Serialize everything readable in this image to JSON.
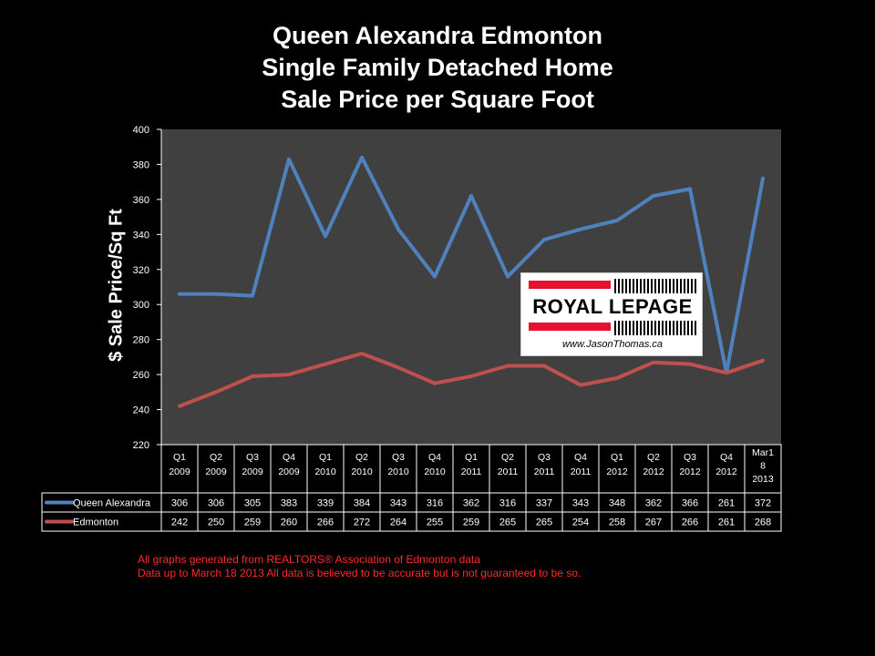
{
  "chart_data": {
    "type": "line",
    "title": [
      "Queen Alexandra Edmonton",
      "Single Family Detached Home",
      "Sale Price per Square Foot"
    ],
    "xlabel": "",
    "ylabel": "$ Sale Price/Sq Ft",
    "ylim": [
      220,
      400
    ],
    "yticks": [
      220,
      240,
      260,
      280,
      300,
      320,
      340,
      360,
      380,
      400
    ],
    "grid": false,
    "legend": "data-table",
    "categories": [
      [
        "Q1",
        "2009"
      ],
      [
        "Q2",
        "2009"
      ],
      [
        "Q3",
        "2009"
      ],
      [
        "Q4",
        "2009"
      ],
      [
        "Q1",
        "2010"
      ],
      [
        "Q2",
        "2010"
      ],
      [
        "Q3",
        "2010"
      ],
      [
        "Q4",
        "2010"
      ],
      [
        "Q1",
        "2011"
      ],
      [
        "Q2",
        "2011"
      ],
      [
        "Q3",
        "2011"
      ],
      [
        "Q4",
        "2011"
      ],
      [
        "Q1",
        "2012"
      ],
      [
        "Q2",
        "2012"
      ],
      [
        "Q3",
        "2012"
      ],
      [
        "Q4",
        "2012"
      ],
      [
        "Mar1",
        "8",
        "2013"
      ]
    ],
    "series": [
      {
        "name": "Queen Alexandra",
        "color": "#4f81bd",
        "values": [
          306,
          306,
          305,
          383,
          339,
          384,
          343,
          316,
          362,
          316,
          337,
          343,
          348,
          362,
          366,
          261,
          372
        ]
      },
      {
        "name": "Edmonton",
        "color": "#c0504d",
        "values": [
          242,
          250,
          259,
          260,
          266,
          272,
          264,
          255,
          259,
          265,
          265,
          254,
          258,
          267,
          266,
          261,
          268
        ]
      }
    ],
    "plot_background": "#404040"
  },
  "logo": {
    "wordmark": "ROYAL LEPAGE",
    "url": "www.JasonThomas.ca"
  },
  "footer": {
    "line1": "All graphs generated from REALTORS® Association of Edmonton data",
    "line2": "Data up to  March 18 2013  All data is believed to be accurate but is not guaranteed to be so."
  }
}
